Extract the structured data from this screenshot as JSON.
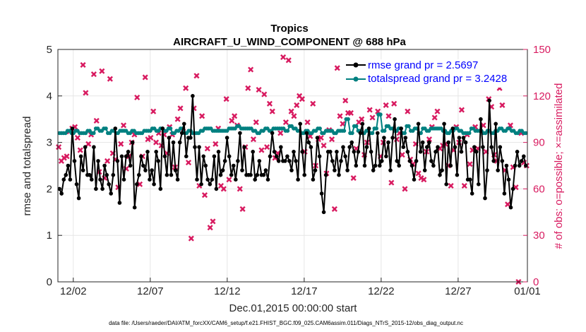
{
  "chart_data": {
    "type": "line",
    "title": "Tropics",
    "subtitle": "AIRCRAFT_U_WIND_COMPONENT @ 688 hPa",
    "xlabel": "Dec.01,2015 00:00:00 start",
    "ylabel": "rmse and totalspread",
    "y2label": "# of obs: o=possible; ×=assimilated",
    "footer": "data file: /Users/raeder/DAI/ATM_forcXX/CAM6_setup/f.e21.FHIST_BGC.f09_025.CAM6assim.011/Diags_NTrS_2015-12/obs_diag_output.nc",
    "xlim": [
      0.5,
      31.0
    ],
    "ylim": [
      0,
      5
    ],
    "y2lim": [
      0,
      150
    ],
    "xticks": [
      {
        "v": 1.5,
        "label": "12/02"
      },
      {
        "v": 6.5,
        "label": "12/07"
      },
      {
        "v": 11.5,
        "label": "12/12"
      },
      {
        "v": 16.5,
        "label": "12/17"
      },
      {
        "v": 21.5,
        "label": "12/22"
      },
      {
        "v": 26.5,
        "label": "12/27"
      },
      {
        "v": 31.5,
        "label": "01/01"
      }
    ],
    "yticks": [
      0,
      1,
      2,
      3,
      4,
      5
    ],
    "y2ticks": [
      0,
      30,
      60,
      90,
      120,
      150
    ],
    "legend": [
      "rmse grand pr = 2.5697",
      "totalspread grand pr = 3.2428"
    ],
    "colors": {
      "rmse": "#000000",
      "spread": "#008080",
      "obs": "#d81b60",
      "legend_text": "#0000ff"
    },
    "series": [
      {
        "name": "rmse grand pr = 2.5697",
        "values": [
          2.0,
          1.9,
          2.2,
          2.3,
          2.5,
          2.2,
          3.3,
          2.6,
          2.1,
          1.8,
          2.7,
          2.4,
          2.9,
          2.3,
          2.3,
          2.2,
          2.9,
          2.0,
          2.6,
          2.2,
          2.0,
          2.5,
          2.3,
          2.1,
          1.9,
          2.3,
          3.3,
          2.6,
          1.7,
          2.7,
          2.2,
          2.7,
          2.8,
          2.5,
          3.0,
          1.6,
          2.1,
          2.3,
          2.7,
          2.5,
          2.4,
          2.8,
          2.2,
          2.4,
          2.1,
          2.8,
          2.6,
          2.0,
          3.3,
          2.7,
          2.3,
          3.1,
          2.3,
          3.0,
          2.4,
          2.2,
          3.0,
          3.2,
          3.4,
          2.7,
          3.1,
          3.1,
          4.0,
          2.9,
          2.2,
          2.9,
          2.1,
          2.7,
          2.5,
          2.2,
          2.1,
          2.2,
          2.7,
          2.0,
          2.8,
          2.3,
          2.4,
          2.6,
          3.1,
          2.7,
          2.3,
          2.5,
          2.2,
          2.6,
          3.2,
          2.4,
          2.9,
          2.3,
          2.3,
          2.3,
          2.8,
          2.2,
          2.3,
          2.6,
          2.3,
          2.3,
          2.4,
          2.2,
          2.7,
          3.2,
          2.8,
          2.7,
          2.6,
          2.9,
          2.6,
          2.6,
          2.7,
          2.6,
          2.4,
          2.8,
          2.6,
          2.2,
          3.4,
          2.8,
          2.3,
          3.2,
          3.0,
          2.9,
          2.2,
          2.4,
          3.1,
          2.7,
          1.9,
          1.5,
          2.3,
          2.8,
          2.8,
          2.6,
          2.4,
          2.8,
          2.3,
          2.6,
          2.9,
          2.7,
          2.4,
          2.9,
          3.0,
          2.8,
          2.5,
          2.8,
          3.2,
          3.4,
          2.5,
          2.9,
          3.3,
          2.8,
          2.4,
          2.5,
          3.2,
          2.5,
          2.6,
          3.1,
          2.7,
          3.0,
          2.4,
          3.1,
          3.5,
          2.6,
          2.5,
          3.3,
          2.9,
          3.1,
          2.8,
          2.6,
          2.5,
          2.2,
          2.6,
          3.4,
          2.8,
          3.0,
          2.4,
          2.9,
          3.0,
          2.6,
          2.5,
          2.8,
          2.9,
          2.3,
          2.4,
          3.4,
          2.1,
          3.0,
          2.5,
          3.3,
          2.9,
          2.3,
          3.1,
          2.8,
          3.1,
          3.0,
          2.2,
          2.2,
          1.9,
          2.9,
          2.8,
          2.1,
          3.5,
          2.9,
          1.8,
          2.4,
          3.9,
          2.9,
          2.6,
          3.4,
          2.4,
          2.9,
          2.6,
          1.9,
          2.5,
          2.2,
          1.6,
          2.0,
          2.5,
          2.8,
          2.5,
          2.6,
          2.7,
          2.5
        ]
      },
      {
        "name": "totalspread grand pr = 3.2428",
        "values": [
          3.2,
          3.2,
          3.2,
          3.2,
          3.25,
          3.25,
          3.2,
          3.2,
          3.25,
          3.25,
          3.2,
          3.2,
          3.2,
          3.2,
          3.25,
          3.25,
          3.2,
          3.2,
          3.3,
          3.3,
          3.25,
          3.25,
          3.3,
          3.3,
          3.2,
          3.2,
          3.25,
          3.25,
          3.2,
          3.2,
          3.25,
          3.25,
          3.25,
          3.25,
          3.2,
          3.2,
          3.25,
          3.25,
          3.2,
          3.2,
          3.2,
          3.2,
          3.25,
          3.25,
          3.25,
          3.25,
          3.3,
          3.3,
          3.25,
          3.25,
          3.3,
          3.3,
          3.25,
          3.25,
          3.3,
          3.3,
          3.2,
          3.2,
          3.25,
          3.25,
          3.3,
          3.3,
          3.2,
          3.2,
          3.25,
          3.25,
          3.2,
          3.2,
          3.2,
          3.2,
          3.25,
          3.25,
          3.3,
          3.3,
          3.3,
          3.3,
          3.25,
          3.25,
          3.25,
          3.25,
          3.25,
          3.25,
          3.25,
          3.25,
          3.3,
          3.3,
          3.3,
          3.3,
          3.35,
          3.35,
          3.3,
          3.3,
          3.3,
          3.3,
          3.3,
          3.3,
          3.25,
          3.25,
          3.2,
          3.2,
          3.25,
          3.25,
          3.3,
          3.3,
          3.25,
          3.25,
          3.3,
          3.3,
          3.3,
          3.3,
          3.3,
          3.3,
          3.25,
          3.25,
          3.35,
          3.35,
          3.3,
          3.3,
          3.25,
          3.25,
          3.2,
          3.2,
          3.25,
          3.25,
          3.2,
          3.2,
          3.25,
          3.25,
          3.3,
          3.3,
          3.2,
          3.2,
          3.25,
          3.25,
          3.25,
          3.25,
          3.2,
          3.2,
          3.25,
          3.25,
          3.25,
          3.25,
          3.5,
          3.5,
          3.2,
          3.2,
          3.35,
          3.35,
          3.25,
          3.25,
          3.2,
          3.2,
          3.25,
          3.25,
          3.2,
          3.2,
          3.3,
          3.3,
          3.6,
          3.6,
          3.25,
          3.25,
          3.35,
          3.35,
          3.3,
          3.3,
          3.25,
          3.25,
          3.3,
          3.3,
          3.2,
          3.2,
          3.35,
          3.35,
          3.25,
          3.25,
          3.3,
          3.3,
          3.2,
          3.2,
          3.3,
          3.3,
          3.25,
          3.25,
          3.3,
          3.3,
          3.3,
          3.3,
          3.3,
          3.3,
          3.25,
          3.25,
          3.2,
          3.2,
          3.25,
          3.25,
          3.3,
          3.3,
          3.25,
          3.25,
          3.2,
          3.2,
          3.2,
          3.2,
          3.3,
          3.3,
          3.25,
          3.25,
          3.25,
          3.25,
          3.2,
          3.2,
          3.25,
          3.25,
          3.2,
          3.2,
          3.25,
          3.25,
          3.3,
          3.3,
          3.25,
          3.25,
          3.3,
          3.3,
          3.25,
          3.25,
          3.2,
          3.2,
          3.25,
          3.25,
          3.2,
          3.2
        ]
      }
    ],
    "obs_assimilated": [
      87,
      78,
      80,
      81,
      97,
      99,
      100,
      93,
      85,
      140,
      122,
      89,
      95,
      134,
      104,
      71,
      136,
      67,
      78,
      131,
      83,
      79,
      61,
      89,
      101,
      73,
      81,
      90,
      95,
      119,
      63,
      81,
      132,
      92,
      93,
      110,
      90,
      96,
      88,
      95,
      83,
      100,
      95,
      74,
      105,
      112,
      97,
      125,
      77,
      28,
      112,
      133,
      62,
      107,
      56,
      86,
      35,
      39,
      89,
      99,
      62,
      60,
      118,
      66,
      104,
      107,
      101,
      60,
      47,
      87,
      125,
      137,
      92,
      103,
      124,
      85,
      121,
      87,
      115,
      110,
      80,
      83,
      96,
      145,
      103,
      143,
      110,
      107,
      114,
      120,
      118,
      84,
      103,
      94,
      115,
      75,
      92,
      93,
      88,
      70,
      98,
      92,
      47,
      138,
      107,
      102,
      117,
      109,
      109,
      67,
      86,
      103,
      105,
      82,
      90,
      111,
      106,
      128,
      110,
      81,
      90,
      114,
      107,
      64,
      115,
      92,
      96,
      82,
      60,
      110,
      79,
      76,
      89,
      70,
      67,
      66,
      84,
      92,
      100,
      106,
      110,
      86,
      88,
      89,
      75,
      62,
      85,
      100,
      90,
      111,
      62,
      95,
      76,
      85,
      100,
      86,
      131,
      101,
      84,
      118,
      113,
      82,
      78,
      125,
      114,
      72,
      50,
      101,
      74,
      61,
      0,
      96,
      77,
      75
    ]
  }
}
